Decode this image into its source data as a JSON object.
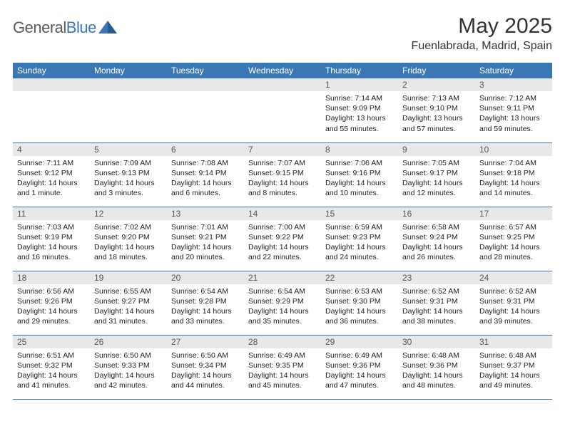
{
  "logo": {
    "part1": "General",
    "part2": "Blue"
  },
  "header": {
    "title": "May 2025",
    "location": "Fuenlabrada, Madrid, Spain"
  },
  "colors": {
    "brand": "#3a78b5",
    "daybg": "#e8e8e8",
    "text": "#222"
  },
  "dow": [
    "Sunday",
    "Monday",
    "Tuesday",
    "Wednesday",
    "Thursday",
    "Friday",
    "Saturday"
  ],
  "weeks": [
    [
      null,
      null,
      null,
      null,
      {
        "n": "1",
        "sr": "7:14 AM",
        "ss": "9:09 PM",
        "dl": "13 hours and 55 minutes."
      },
      {
        "n": "2",
        "sr": "7:13 AM",
        "ss": "9:10 PM",
        "dl": "13 hours and 57 minutes."
      },
      {
        "n": "3",
        "sr": "7:12 AM",
        "ss": "9:11 PM",
        "dl": "13 hours and 59 minutes."
      }
    ],
    [
      {
        "n": "4",
        "sr": "7:11 AM",
        "ss": "9:12 PM",
        "dl": "14 hours and 1 minute."
      },
      {
        "n": "5",
        "sr": "7:09 AM",
        "ss": "9:13 PM",
        "dl": "14 hours and 3 minutes."
      },
      {
        "n": "6",
        "sr": "7:08 AM",
        "ss": "9:14 PM",
        "dl": "14 hours and 6 minutes."
      },
      {
        "n": "7",
        "sr": "7:07 AM",
        "ss": "9:15 PM",
        "dl": "14 hours and 8 minutes."
      },
      {
        "n": "8",
        "sr": "7:06 AM",
        "ss": "9:16 PM",
        "dl": "14 hours and 10 minutes."
      },
      {
        "n": "9",
        "sr": "7:05 AM",
        "ss": "9:17 PM",
        "dl": "14 hours and 12 minutes."
      },
      {
        "n": "10",
        "sr": "7:04 AM",
        "ss": "9:18 PM",
        "dl": "14 hours and 14 minutes."
      }
    ],
    [
      {
        "n": "11",
        "sr": "7:03 AM",
        "ss": "9:19 PM",
        "dl": "14 hours and 16 minutes."
      },
      {
        "n": "12",
        "sr": "7:02 AM",
        "ss": "9:20 PM",
        "dl": "14 hours and 18 minutes."
      },
      {
        "n": "13",
        "sr": "7:01 AM",
        "ss": "9:21 PM",
        "dl": "14 hours and 20 minutes."
      },
      {
        "n": "14",
        "sr": "7:00 AM",
        "ss": "9:22 PM",
        "dl": "14 hours and 22 minutes."
      },
      {
        "n": "15",
        "sr": "6:59 AM",
        "ss": "9:23 PM",
        "dl": "14 hours and 24 minutes."
      },
      {
        "n": "16",
        "sr": "6:58 AM",
        "ss": "9:24 PM",
        "dl": "14 hours and 26 minutes."
      },
      {
        "n": "17",
        "sr": "6:57 AM",
        "ss": "9:25 PM",
        "dl": "14 hours and 28 minutes."
      }
    ],
    [
      {
        "n": "18",
        "sr": "6:56 AM",
        "ss": "9:26 PM",
        "dl": "14 hours and 29 minutes."
      },
      {
        "n": "19",
        "sr": "6:55 AM",
        "ss": "9:27 PM",
        "dl": "14 hours and 31 minutes."
      },
      {
        "n": "20",
        "sr": "6:54 AM",
        "ss": "9:28 PM",
        "dl": "14 hours and 33 minutes."
      },
      {
        "n": "21",
        "sr": "6:54 AM",
        "ss": "9:29 PM",
        "dl": "14 hours and 35 minutes."
      },
      {
        "n": "22",
        "sr": "6:53 AM",
        "ss": "9:30 PM",
        "dl": "14 hours and 36 minutes."
      },
      {
        "n": "23",
        "sr": "6:52 AM",
        "ss": "9:31 PM",
        "dl": "14 hours and 38 minutes."
      },
      {
        "n": "24",
        "sr": "6:52 AM",
        "ss": "9:31 PM",
        "dl": "14 hours and 39 minutes."
      }
    ],
    [
      {
        "n": "25",
        "sr": "6:51 AM",
        "ss": "9:32 PM",
        "dl": "14 hours and 41 minutes."
      },
      {
        "n": "26",
        "sr": "6:50 AM",
        "ss": "9:33 PM",
        "dl": "14 hours and 42 minutes."
      },
      {
        "n": "27",
        "sr": "6:50 AM",
        "ss": "9:34 PM",
        "dl": "14 hours and 44 minutes."
      },
      {
        "n": "28",
        "sr": "6:49 AM",
        "ss": "9:35 PM",
        "dl": "14 hours and 45 minutes."
      },
      {
        "n": "29",
        "sr": "6:49 AM",
        "ss": "9:36 PM",
        "dl": "14 hours and 47 minutes."
      },
      {
        "n": "30",
        "sr": "6:48 AM",
        "ss": "9:36 PM",
        "dl": "14 hours and 48 minutes."
      },
      {
        "n": "31",
        "sr": "6:48 AM",
        "ss": "9:37 PM",
        "dl": "14 hours and 49 minutes."
      }
    ]
  ],
  "labels": {
    "sunrise": "Sunrise: ",
    "sunset": "Sunset: ",
    "daylight": "Daylight: "
  }
}
